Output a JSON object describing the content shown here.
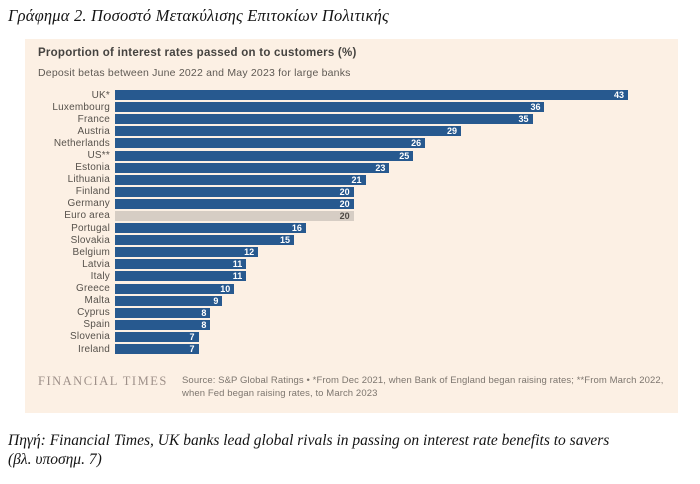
{
  "page": {
    "heading": "Γράφημα 2. Ποσοστό Μετακύλισης Επιτοκίων Πολιτικής",
    "caption_line1": "Πηγή: Financial Times, UK banks lead global rivals in passing on interest rate benefits to savers",
    "caption_line2": "(βλ. υποσημ. 7)"
  },
  "panel": {
    "title": "Proportion of interest rates passed on to customers (%)",
    "subtitle": "Deposit betas between June 2022 and May 2023 for large banks",
    "footer": {
      "logo": "FINANCIAL TIMES",
      "source": "Source: S&P Global Ratings • *From Dec 2021, when Bank of England began raising rates; **From March 2022, when Fed began raising rates, to March 2023"
    },
    "colors": {
      "background": "#fcf0e4",
      "bar": "#27598f",
      "highlight_bar": "#d6cdc4",
      "value_text": "#ffffff",
      "highlight_value_text": "#4f4a45"
    }
  },
  "chart_data": {
    "type": "bar",
    "orientation": "horizontal",
    "title": "Proportion of interest rates passed on to customers (%)",
    "subtitle": "Deposit betas between June 2022 and May 2023 for large banks",
    "categories": [
      "UK*",
      "Luxembourg",
      "France",
      "Austria",
      "Netherlands",
      "US**",
      "Estonia",
      "Lithuania",
      "Finland",
      "Germany",
      "Euro area",
      "Portugal",
      "Slovakia",
      "Belgium",
      "Latvia",
      "Italy",
      "Greece",
      "Malta",
      "Cyprus",
      "Spain",
      "Slovenia",
      "Ireland"
    ],
    "values": [
      43,
      36,
      35,
      29,
      26,
      25,
      23,
      21,
      20,
      20,
      20,
      16,
      15,
      12,
      11,
      11,
      10,
      9,
      8,
      8,
      7,
      7
    ],
    "highlighted_category": "Euro area",
    "xlim": [
      0,
      43
    ],
    "value_labels": true,
    "grid": false,
    "legend": false,
    "source": "Source: S&P Global Ratings • *From Dec 2021, when Bank of England began raising rates; **From March 2022, when Fed began raising rates, to March 2023"
  }
}
